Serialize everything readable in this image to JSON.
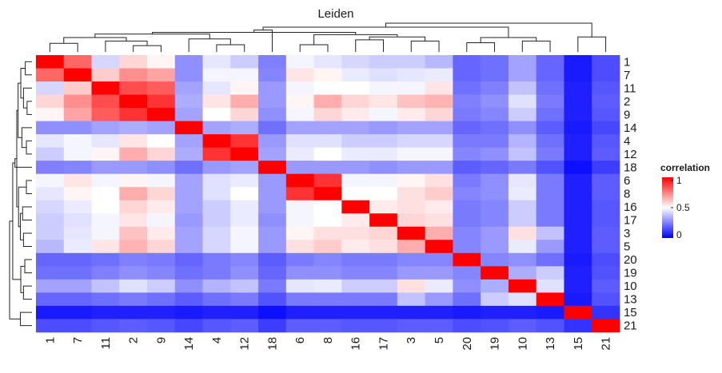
{
  "chart_data": {
    "type": "heatmap",
    "title": "Leiden",
    "labels": [
      "1",
      "7",
      "11",
      "2",
      "9",
      "14",
      "4",
      "12",
      "18",
      "6",
      "8",
      "16",
      "17",
      "3",
      "5",
      "20",
      "19",
      "10",
      "13",
      "15",
      "21"
    ],
    "matrix": [
      [
        1.0,
        0.8,
        0.42,
        0.58,
        0.52,
        0.28,
        0.45,
        0.4,
        0.25,
        0.48,
        0.45,
        0.42,
        0.4,
        0.4,
        0.36,
        0.2,
        0.22,
        0.32,
        0.2,
        0.05,
        0.15
      ],
      [
        0.8,
        1.0,
        0.6,
        0.72,
        0.68,
        0.28,
        0.48,
        0.48,
        0.26,
        0.55,
        0.52,
        0.46,
        0.44,
        0.45,
        0.46,
        0.2,
        0.22,
        0.32,
        0.2,
        0.05,
        0.15
      ],
      [
        0.42,
        0.6,
        1.0,
        0.85,
        0.82,
        0.32,
        0.45,
        0.52,
        0.3,
        0.48,
        0.5,
        0.5,
        0.48,
        0.48,
        0.55,
        0.22,
        0.25,
        0.38,
        0.22,
        0.06,
        0.17
      ],
      [
        0.58,
        0.72,
        0.85,
        1.0,
        0.9,
        0.34,
        0.55,
        0.66,
        0.3,
        0.52,
        0.66,
        0.58,
        0.55,
        0.62,
        0.65,
        0.25,
        0.28,
        0.44,
        0.24,
        0.06,
        0.18
      ],
      [
        0.52,
        0.68,
        0.82,
        0.9,
        1.0,
        0.32,
        0.5,
        0.58,
        0.28,
        0.48,
        0.58,
        0.54,
        0.48,
        0.54,
        0.58,
        0.24,
        0.26,
        0.4,
        0.22,
        0.06,
        0.17
      ],
      [
        0.28,
        0.28,
        0.32,
        0.34,
        0.32,
        1.0,
        0.32,
        0.34,
        0.22,
        0.32,
        0.32,
        0.32,
        0.3,
        0.32,
        0.32,
        0.2,
        0.22,
        0.28,
        0.18,
        0.05,
        0.14
      ],
      [
        0.45,
        0.48,
        0.45,
        0.55,
        0.5,
        0.32,
        1.0,
        0.9,
        0.3,
        0.44,
        0.44,
        0.4,
        0.4,
        0.42,
        0.42,
        0.24,
        0.24,
        0.35,
        0.22,
        0.06,
        0.17
      ],
      [
        0.4,
        0.48,
        0.52,
        0.66,
        0.58,
        0.34,
        0.9,
        1.0,
        0.32,
        0.46,
        0.5,
        0.46,
        0.46,
        0.48,
        0.48,
        0.26,
        0.28,
        0.38,
        0.24,
        0.06,
        0.18
      ],
      [
        0.25,
        0.26,
        0.3,
        0.3,
        0.28,
        0.22,
        0.3,
        0.32,
        1.0,
        0.3,
        0.3,
        0.3,
        0.28,
        0.3,
        0.3,
        0.18,
        0.2,
        0.24,
        0.16,
        0.03,
        0.12
      ],
      [
        0.48,
        0.55,
        0.48,
        0.52,
        0.48,
        0.32,
        0.44,
        0.46,
        0.3,
        1.0,
        0.9,
        0.48,
        0.48,
        0.52,
        0.56,
        0.24,
        0.28,
        0.45,
        0.24,
        0.06,
        0.18
      ],
      [
        0.45,
        0.52,
        0.5,
        0.66,
        0.58,
        0.32,
        0.44,
        0.5,
        0.3,
        0.9,
        1.0,
        0.5,
        0.5,
        0.56,
        0.6,
        0.26,
        0.28,
        0.46,
        0.24,
        0.06,
        0.18
      ],
      [
        0.42,
        0.46,
        0.5,
        0.58,
        0.54,
        0.32,
        0.4,
        0.46,
        0.3,
        0.48,
        0.5,
        1.0,
        0.54,
        0.56,
        0.54,
        0.24,
        0.26,
        0.4,
        0.24,
        0.06,
        0.17
      ],
      [
        0.4,
        0.44,
        0.48,
        0.55,
        0.48,
        0.3,
        0.4,
        0.46,
        0.28,
        0.48,
        0.5,
        0.54,
        1.0,
        0.58,
        0.56,
        0.24,
        0.26,
        0.4,
        0.24,
        0.06,
        0.17
      ],
      [
        0.4,
        0.45,
        0.48,
        0.62,
        0.54,
        0.32,
        0.42,
        0.48,
        0.3,
        0.52,
        0.56,
        0.56,
        0.58,
        1.0,
        0.66,
        0.26,
        0.3,
        0.56,
        0.38,
        0.06,
        0.18
      ],
      [
        0.36,
        0.46,
        0.55,
        0.65,
        0.58,
        0.32,
        0.42,
        0.48,
        0.3,
        0.56,
        0.6,
        0.54,
        0.56,
        0.66,
        1.0,
        0.26,
        0.3,
        0.46,
        0.3,
        0.06,
        0.18
      ],
      [
        0.2,
        0.2,
        0.22,
        0.25,
        0.24,
        0.2,
        0.24,
        0.26,
        0.18,
        0.24,
        0.26,
        0.24,
        0.24,
        0.26,
        0.26,
        1.0,
        0.26,
        0.28,
        0.22,
        0.05,
        0.15
      ],
      [
        0.22,
        0.22,
        0.25,
        0.28,
        0.26,
        0.22,
        0.24,
        0.28,
        0.2,
        0.28,
        0.28,
        0.26,
        0.26,
        0.3,
        0.3,
        0.26,
        1.0,
        0.34,
        0.4,
        0.06,
        0.16
      ],
      [
        0.32,
        0.32,
        0.38,
        0.44,
        0.4,
        0.28,
        0.35,
        0.38,
        0.24,
        0.45,
        0.46,
        0.4,
        0.4,
        0.56,
        0.46,
        0.28,
        0.34,
        1.0,
        0.44,
        0.06,
        0.18
      ],
      [
        0.2,
        0.2,
        0.22,
        0.24,
        0.22,
        0.18,
        0.22,
        0.24,
        0.16,
        0.24,
        0.24,
        0.24,
        0.24,
        0.38,
        0.3,
        0.22,
        0.4,
        0.44,
        1.0,
        0.05,
        0.16
      ],
      [
        0.05,
        0.05,
        0.06,
        0.06,
        0.06,
        0.05,
        0.06,
        0.06,
        0.03,
        0.06,
        0.06,
        0.06,
        0.06,
        0.06,
        0.06,
        0.05,
        0.06,
        0.06,
        0.05,
        1.0,
        0.1
      ],
      [
        0.15,
        0.15,
        0.17,
        0.18,
        0.17,
        0.14,
        0.17,
        0.18,
        0.12,
        0.18,
        0.18,
        0.17,
        0.17,
        0.18,
        0.18,
        0.15,
        0.16,
        0.18,
        0.16,
        0.1,
        1.0
      ]
    ],
    "colorscale": {
      "low": "#0000ff",
      "mid": "#ffffff",
      "high": "#ff0000"
    },
    "range": [
      0,
      1
    ],
    "legend": {
      "title": "correlation",
      "ticks": [
        "1",
        "0.5",
        "0"
      ],
      "tick_values": [
        1,
        0.5,
        0
      ],
      "placement": "right"
    },
    "dendrogram": {
      "merges": [
        [
          0,
          1
        ],
        [
          3,
          4
        ],
        [
          2,
          22
        ],
        [
          21,
          23
        ],
        [
          6,
          7
        ],
        [
          25,
          5
        ],
        [
          24,
          26
        ],
        [
          9,
          10
        ],
        [
          11,
          12
        ],
        [
          13,
          14
        ],
        [
          29,
          30
        ],
        [
          28,
          31
        ],
        [
          27,
          32
        ],
        [
          8,
          33
        ],
        [
          15,
          16
        ],
        [
          17,
          18
        ],
        [
          35,
          36
        ],
        [
          34,
          37
        ],
        [
          19,
          20
        ],
        [
          38,
          39
        ]
      ],
      "heights": [
        0.3,
        0.22,
        0.38,
        0.5,
        0.25,
        0.45,
        0.62,
        0.25,
        0.42,
        0.38,
        0.52,
        0.6,
        0.68,
        0.76,
        0.32,
        0.38,
        0.5,
        0.86,
        0.52,
        1.0
      ]
    }
  }
}
